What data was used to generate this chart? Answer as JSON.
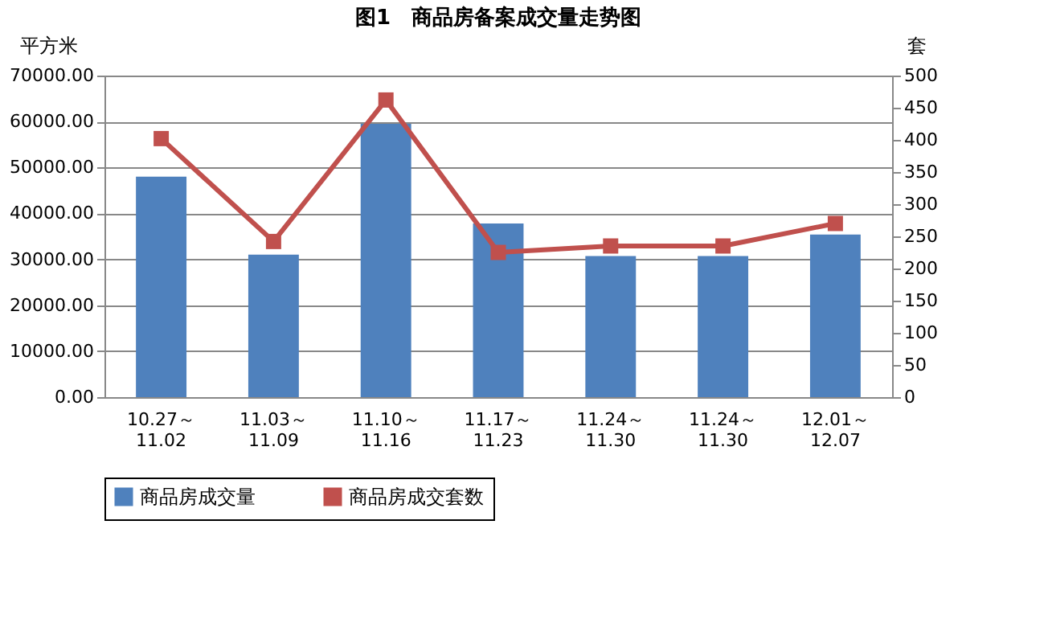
{
  "chart_data": {
    "type": "bar",
    "title": "图1　商品房备案成交量走势图",
    "categories": [
      "10.27～\n11.02",
      "11.03～\n11.09",
      "11.10～\n11.16",
      "11.17～\n11.23",
      "11.24～\n11.30",
      "11.24～\n11.30",
      "12.01～\n12.07"
    ],
    "ylabel": "平方米",
    "y2label": "套",
    "series": [
      {
        "name": "商品房成交量",
        "color": "#4f81bd",
        "values": [
          48000,
          31000,
          59500,
          37800,
          30700,
          30700,
          35400
        ]
      },
      {
        "name": "商品房成交套数",
        "type": "line",
        "axis": "y2",
        "color": "#c0504d",
        "marker": "square",
        "values": [
          402,
          242,
          462,
          225,
          235,
          235,
          270
        ]
      }
    ],
    "ylim": [
      0,
      70000
    ],
    "yticks": [
      {
        "value": 0,
        "label": "0.00"
      },
      {
        "value": 10000,
        "label": "10000.00"
      },
      {
        "value": 20000,
        "label": "20000.00"
      },
      {
        "value": 30000,
        "label": "30000.00"
      },
      {
        "value": 40000,
        "label": "40000.00"
      },
      {
        "value": 50000,
        "label": "50000.00"
      },
      {
        "value": 60000,
        "label": "60000.00"
      },
      {
        "value": 70000,
        "label": "70000.00"
      }
    ],
    "y2lim": [
      0,
      500
    ],
    "y2ticks": [
      0,
      50,
      100,
      150,
      200,
      250,
      300,
      350,
      400,
      450,
      500
    ],
    "grid": "y",
    "legend": "bottom"
  }
}
